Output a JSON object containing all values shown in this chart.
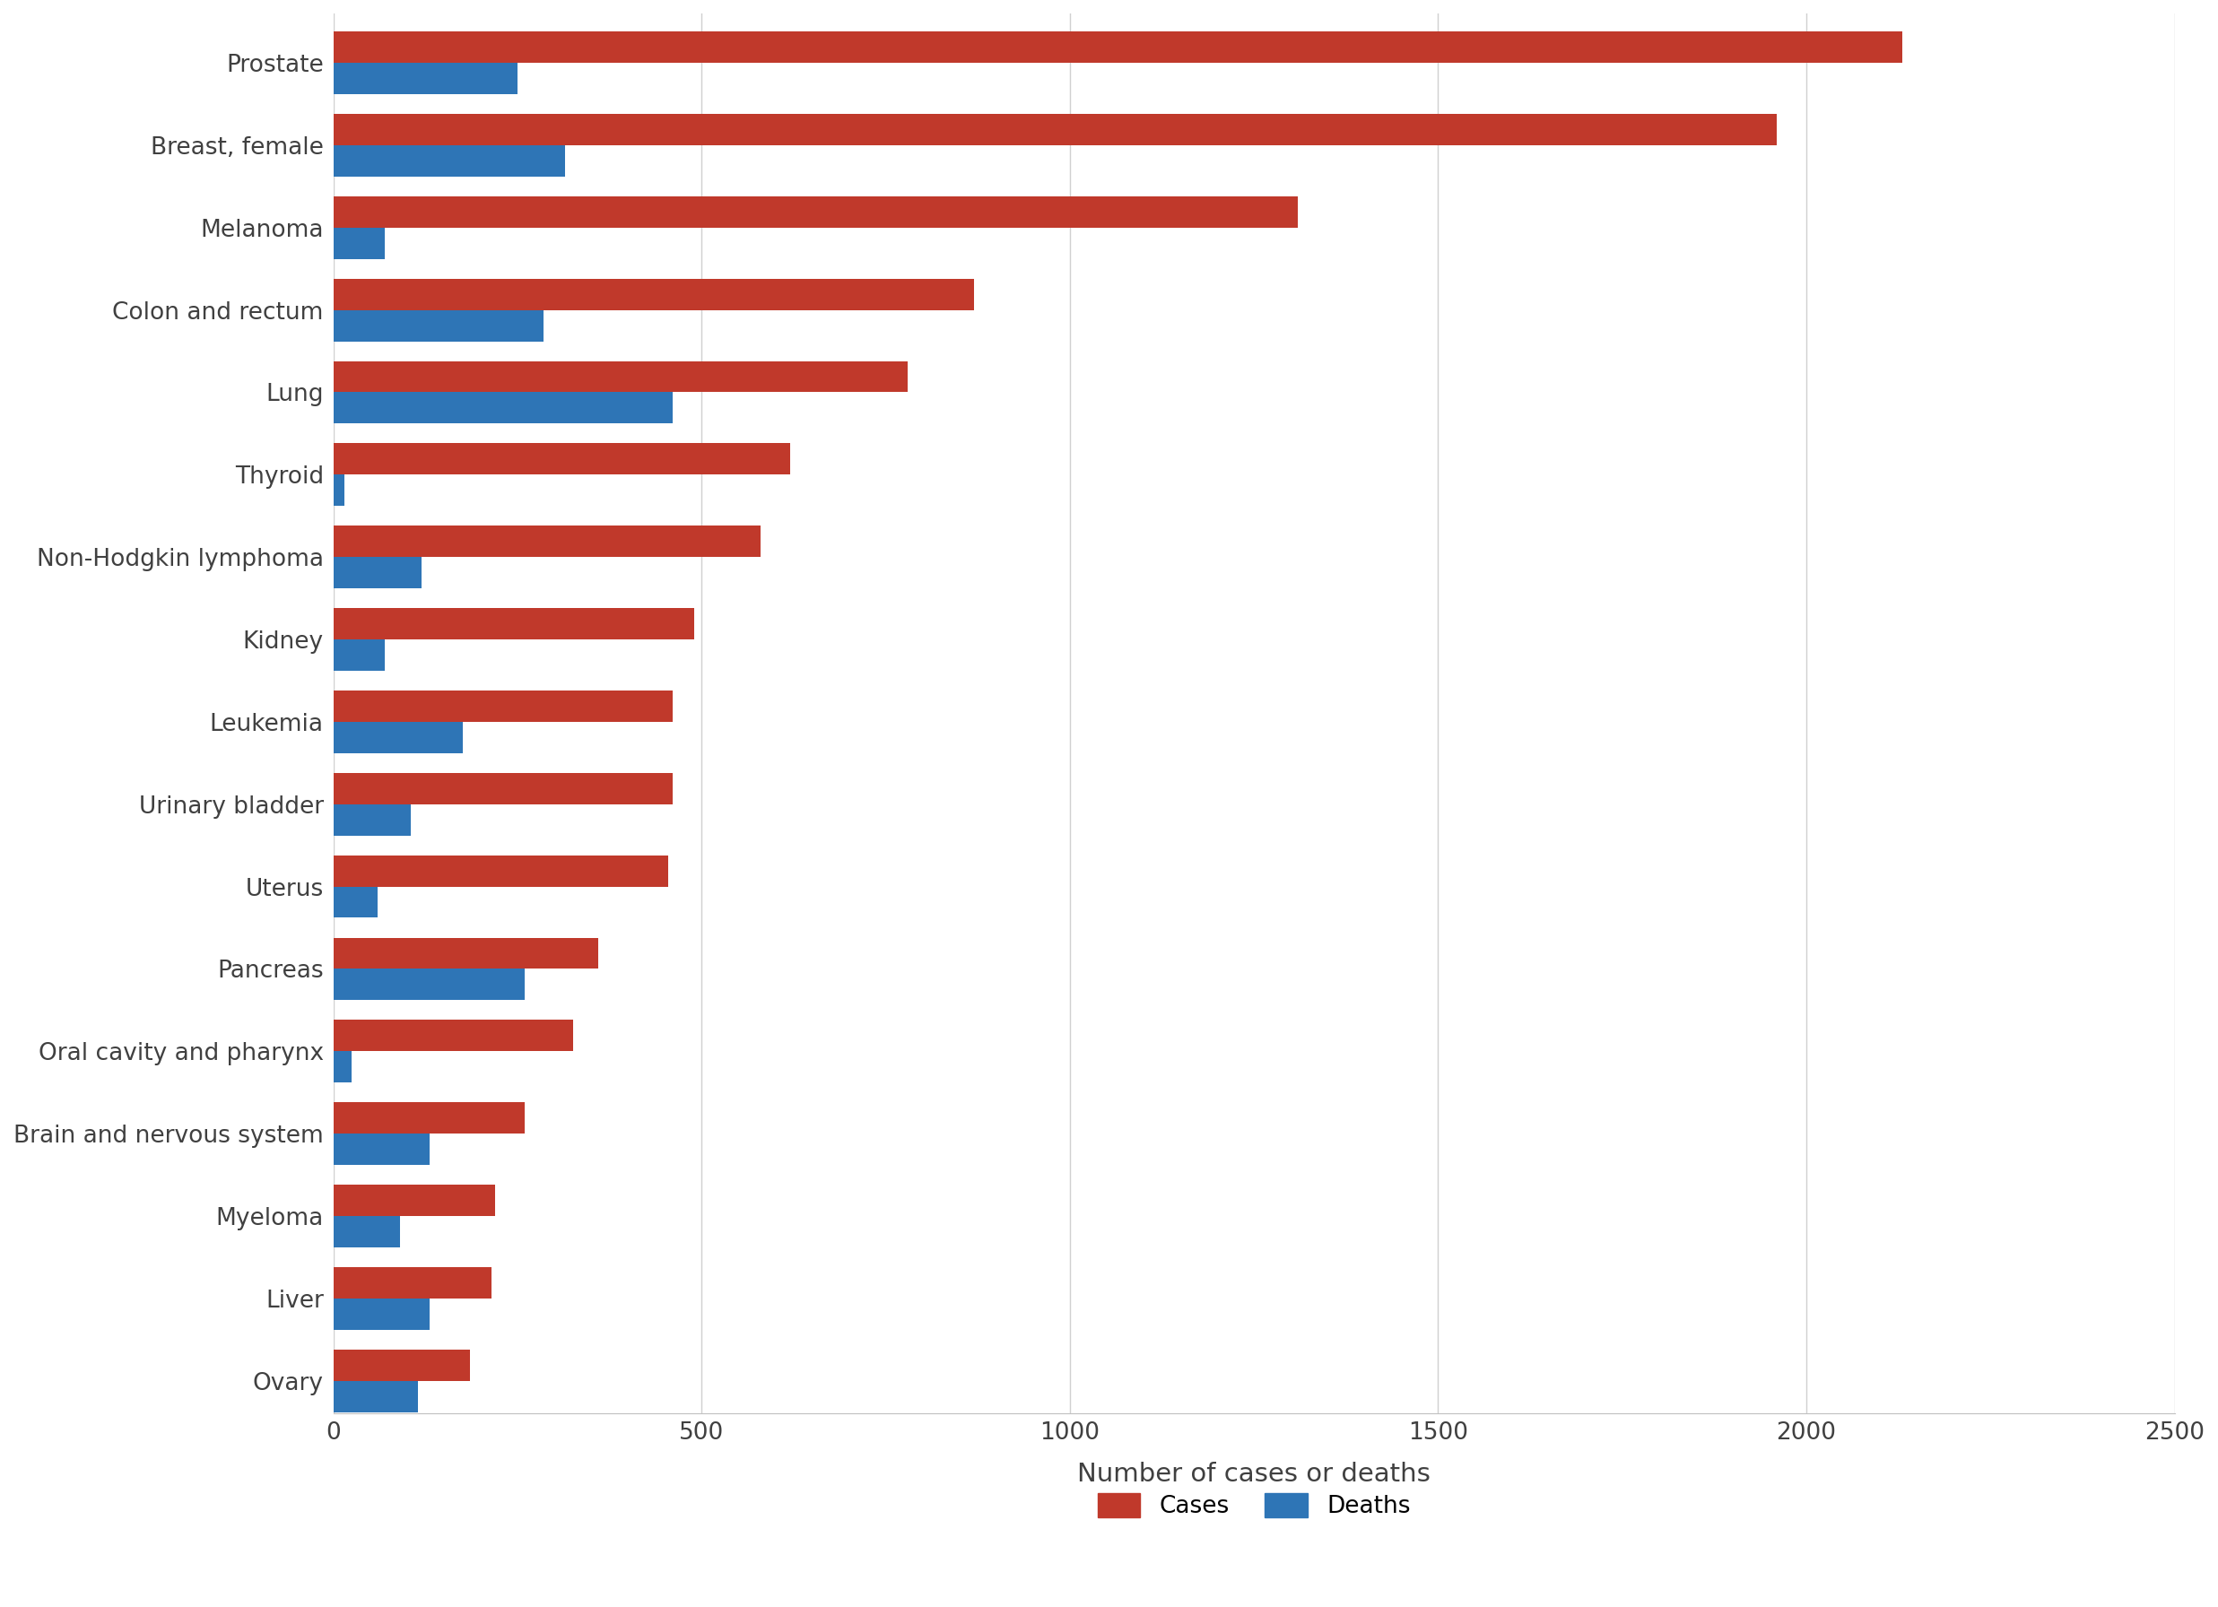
{
  "categories": [
    "Prostate",
    "Breast, female",
    "Melanoma",
    "Colon and rectum",
    "Lung",
    "Thyroid",
    "Non-Hodgkin lymphoma",
    "Kidney",
    "Leukemia",
    "Urinary bladder",
    "Uterus",
    "Pancreas",
    "Oral cavity and pharynx",
    "Brain and nervous system",
    "Myeloma",
    "Liver",
    "Ovary"
  ],
  "cases": [
    2130,
    1960,
    1310,
    870,
    780,
    620,
    580,
    490,
    460,
    460,
    455,
    360,
    325,
    260,
    220,
    215,
    185
  ],
  "deaths": [
    250,
    315,
    70,
    285,
    460,
    15,
    120,
    70,
    175,
    105,
    60,
    260,
    25,
    130,
    90,
    130,
    115
  ],
  "cases_color": "#c0392b",
  "deaths_color": "#2e75b6",
  "background_color": "#ffffff",
  "xlabel": "Number of cases or deaths",
  "xlim": [
    0,
    2500
  ],
  "xticks": [
    0,
    500,
    1000,
    1500,
    2000,
    2500
  ],
  "legend_labels": [
    "Cases",
    "Deaths"
  ],
  "bar_height": 0.38,
  "grid_color": "#d0d0d0"
}
